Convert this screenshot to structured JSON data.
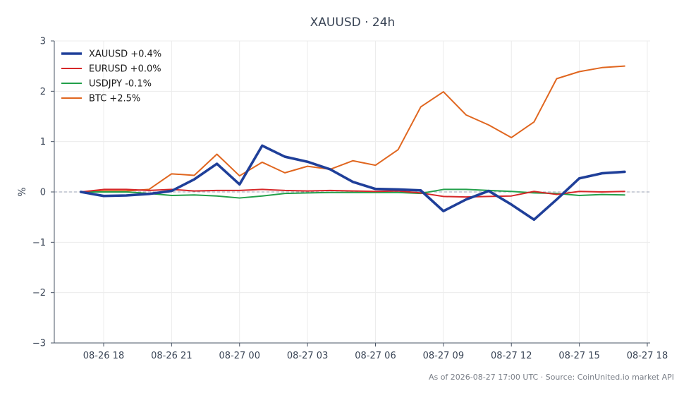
{
  "chart_data": {
    "type": "line",
    "title": "XAUUSD · 24h",
    "xlabel": "",
    "ylabel": "%",
    "ylim": [
      -3,
      3
    ],
    "yticks": [
      3,
      2,
      1,
      0,
      -1,
      -2,
      -3
    ],
    "ytick_labels": [
      "3",
      "2",
      "1",
      "0",
      "−1",
      "−2",
      "−3"
    ],
    "xtick_labels": [
      "08-26 18",
      "08-26 21",
      "08-27 00",
      "08-27 03",
      "08-27 06",
      "08-27 09",
      "08-27 12",
      "08-27 15",
      "08-27 18"
    ],
    "x": [
      "08-26 17",
      "08-26 18",
      "08-26 19",
      "08-26 20",
      "08-26 21",
      "08-26 22",
      "08-26 23",
      "08-27 00",
      "08-27 01",
      "08-27 02",
      "08-27 03",
      "08-27 04",
      "08-27 05",
      "08-27 06",
      "08-27 07",
      "08-27 08",
      "08-27 09",
      "08-27 10",
      "08-27 11",
      "08-27 12",
      "08-27 13",
      "08-27 14",
      "08-27 15",
      "08-27 16",
      "08-27 17"
    ],
    "grid": true,
    "legend_position": "top-left",
    "zero_line": true,
    "series": [
      {
        "name": "XAUUSD +0.4%",
        "color": "#1f3f99",
        "values": [
          0.0,
          -0.08,
          -0.07,
          -0.04,
          0.02,
          0.25,
          0.56,
          0.15,
          0.92,
          0.7,
          0.6,
          0.45,
          0.2,
          0.06,
          0.05,
          0.03,
          -0.38,
          -0.15,
          0.02,
          -0.25,
          -0.55,
          -0.15,
          0.27,
          0.37,
          0.4
        ]
      },
      {
        "name": "EURUSD +0.0%",
        "color": "#d62728",
        "values": [
          0.0,
          0.05,
          0.05,
          0.03,
          0.05,
          0.02,
          0.03,
          0.03,
          0.05,
          0.03,
          0.02,
          0.03,
          0.02,
          0.01,
          0.02,
          -0.02,
          -0.09,
          -0.1,
          -0.09,
          -0.08,
          0.01,
          -0.05,
          0.01,
          0.0,
          0.01
        ]
      },
      {
        "name": "USDJPY -0.1%",
        "color": "#22a04a",
        "values": [
          0.0,
          0.0,
          0.0,
          -0.03,
          -0.07,
          -0.06,
          -0.08,
          -0.12,
          -0.08,
          -0.03,
          -0.02,
          -0.01,
          -0.01,
          -0.01,
          -0.01,
          -0.03,
          0.05,
          0.05,
          0.03,
          0.01,
          -0.02,
          -0.03,
          -0.07,
          -0.05,
          -0.06
        ]
      },
      {
        "name": "BTC +2.5%",
        "color": "#e0661f",
        "values": [
          0.0,
          0.02,
          0.02,
          0.05,
          0.36,
          0.33,
          0.75,
          0.32,
          0.59,
          0.38,
          0.51,
          0.45,
          0.62,
          0.53,
          0.84,
          1.69,
          1.99,
          1.53,
          1.33,
          1.08,
          1.39,
          2.25,
          2.39,
          2.47,
          2.5
        ]
      }
    ]
  },
  "footer_text": "As of 2026-08-27 17:00 UTC · Source: CoinUnited.io market API"
}
